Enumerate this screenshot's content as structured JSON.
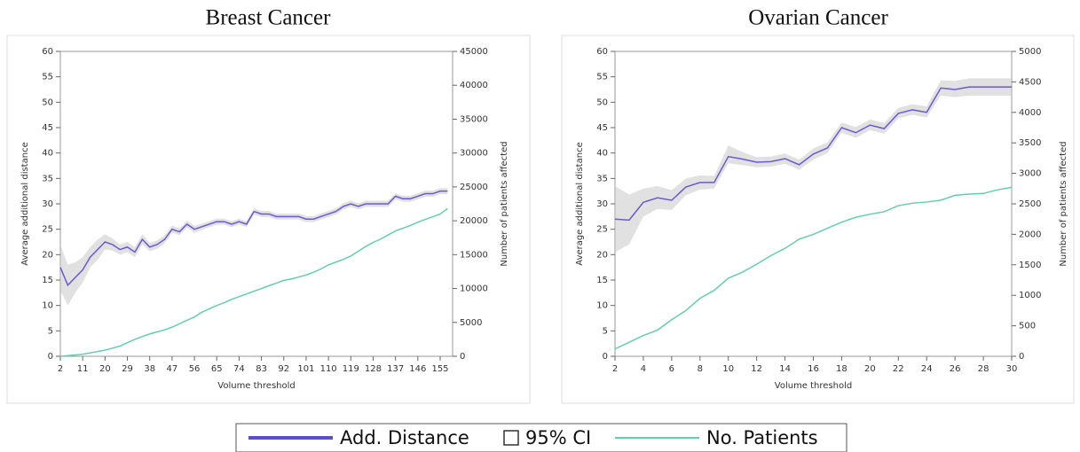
{
  "chart_data": [
    {
      "type": "line",
      "title": "Breast Cancer",
      "x_label": "Volume threshold",
      "y_label": "Average additional distance",
      "y2_label": "Number of patients affected",
      "x": [
        2,
        5,
        8,
        11,
        14,
        17,
        20,
        23,
        26,
        29,
        32,
        35,
        38,
        41,
        44,
        47,
        50,
        53,
        56,
        59,
        62,
        65,
        68,
        71,
        74,
        77,
        80,
        83,
        86,
        89,
        92,
        95,
        98,
        101,
        104,
        107,
        110,
        113,
        116,
        119,
        122,
        125,
        128,
        131,
        134,
        137,
        140,
        143,
        146,
        149,
        152,
        155,
        158
      ],
      "series": [
        {
          "color": "#6a5acd",
          "values": [
            17.5,
            14,
            15.5,
            17,
            19.5,
            21,
            22.5,
            22,
            21,
            21.5,
            20.5,
            23,
            21.5,
            22,
            23,
            25,
            24.5,
            26,
            25,
            25.5,
            26,
            26.5,
            26.5,
            26,
            26.5,
            26,
            28.5,
            28,
            28,
            27.5,
            27.5,
            27.5,
            27.5,
            27,
            27,
            27.5,
            28,
            28.5,
            29.5,
            30,
            29.5,
            30,
            30,
            30,
            30,
            31.5,
            31,
            31,
            31.5,
            32,
            32,
            32.5,
            32.5
          ],
          "lower": [
            13,
            10,
            12.5,
            14.5,
            17.5,
            19,
            21,
            20.8,
            20,
            20.5,
            19.5,
            22,
            20.7,
            21.2,
            22.2,
            24.3,
            23.8,
            25.3,
            24.3,
            24.9,
            25.4,
            25.9,
            25.9,
            25.4,
            25.9,
            25.4,
            27.9,
            27.4,
            27.4,
            26.9,
            26.9,
            26.9,
            26.9,
            26.4,
            26.4,
            26.9,
            27.4,
            27.9,
            28.9,
            29.4,
            28.9,
            29.4,
            29.4,
            29.4,
            29.4,
            30.9,
            30.4,
            30.4,
            30.9,
            31.4,
            31.4,
            31.9,
            31.9
          ],
          "upper": [
            22,
            18,
            18.5,
            19.5,
            21.5,
            23,
            24,
            23.2,
            22,
            22.5,
            21.5,
            24,
            22.3,
            22.8,
            23.8,
            25.7,
            25.2,
            26.7,
            25.7,
            26.1,
            26.6,
            27.1,
            27.1,
            26.6,
            27.1,
            26.6,
            29.1,
            28.6,
            28.6,
            28.1,
            28.1,
            28.1,
            28.1,
            27.6,
            27.6,
            28.1,
            28.6,
            29.1,
            30.1,
            30.6,
            30.1,
            30.6,
            30.6,
            30.6,
            30.6,
            32.1,
            31.6,
            31.6,
            32.1,
            32.6,
            32.6,
            33.1,
            33.1
          ]
        },
        {
          "color": "#66cdaa",
          "axis": "y2",
          "values": [
            0,
            100,
            200,
            300,
            500,
            700,
            900,
            1200,
            1500,
            2000,
            2500,
            2900,
            3300,
            3600,
            3900,
            4300,
            4800,
            5300,
            5800,
            6500,
            7000,
            7500,
            7900,
            8400,
            8800,
            9200,
            9600,
            10000,
            10400,
            10800,
            11200,
            11400,
            11700,
            12000,
            12400,
            12900,
            13500,
            13900,
            14300,
            14800,
            15500,
            16200,
            16800,
            17300,
            17900,
            18500,
            18900,
            19300,
            19800,
            20200,
            20600,
            21000,
            21800
          ]
        }
      ],
      "xlim": [
        2,
        160
      ],
      "xticks": [
        2,
        11,
        20,
        29,
        38,
        47,
        56,
        65,
        74,
        83,
        92,
        101,
        110,
        119,
        128,
        137,
        146,
        155
      ],
      "ylim": [
        0,
        60
      ],
      "yticks": [
        0,
        5,
        10,
        15,
        20,
        25,
        30,
        35,
        40,
        45,
        50,
        55,
        60
      ],
      "y2lim": [
        0,
        45000
      ],
      "y2ticks": [
        0,
        5000,
        10000,
        15000,
        20000,
        25000,
        30000,
        35000,
        40000,
        45000
      ]
    },
    {
      "type": "line",
      "title": "Ovarian Cancer",
      "x_label": "Volume threshold",
      "y_label": "Average additional distance",
      "y2_label": "Number of patients affected",
      "x": [
        2,
        3,
        4,
        5,
        6,
        7,
        8,
        9,
        10,
        11,
        12,
        13,
        14,
        15,
        16,
        17,
        18,
        19,
        20,
        21,
        22,
        23,
        24,
        25,
        26,
        27,
        28,
        29,
        30
      ],
      "series": [
        {
          "color": "#6a5acd",
          "values": [
            27,
            26.8,
            30.3,
            31.2,
            30.7,
            33.3,
            34.2,
            34.2,
            39.3,
            38.8,
            38.2,
            38.3,
            38.9,
            37.7,
            39.8,
            41,
            45,
            44,
            45.5,
            44.8,
            47.8,
            48.5,
            48,
            52.8,
            52.5,
            53,
            53,
            53,
            53
          ],
          "lower": [
            20.5,
            22,
            27.5,
            29,
            28.8,
            31.7,
            32.8,
            33,
            38,
            37.6,
            37.2,
            37.3,
            37.9,
            36.7,
            38.7,
            40,
            44,
            43,
            44.5,
            43.8,
            46.8,
            47.5,
            47,
            51.3,
            51,
            51.3,
            51.3,
            51.3,
            51.3
          ],
          "upper": [
            33.5,
            31.8,
            33,
            33.5,
            32.7,
            35,
            35.6,
            35.5,
            41.5,
            40.2,
            39.2,
            39.3,
            39.9,
            38.7,
            40.9,
            42.1,
            46,
            45.1,
            46.6,
            45.9,
            48.9,
            49.6,
            49.2,
            54.3,
            54.2,
            54.7,
            54.7,
            54.7,
            54.7
          ]
        },
        {
          "color": "#66cdaa",
          "axis": "y2",
          "values": [
            120,
            230,
            340,
            430,
            600,
            750,
            950,
            1080,
            1280,
            1380,
            1510,
            1650,
            1770,
            1920,
            2000,
            2100,
            2200,
            2280,
            2330,
            2370,
            2470,
            2510,
            2530,
            2560,
            2640,
            2660,
            2670,
            2730,
            2770
          ]
        }
      ],
      "xlim": [
        2,
        30
      ],
      "xticks": [
        2,
        4,
        6,
        8,
        10,
        12,
        14,
        16,
        18,
        20,
        22,
        24,
        26,
        28,
        30
      ],
      "ylim": [
        0,
        60
      ],
      "yticks": [
        0,
        5,
        10,
        15,
        20,
        25,
        30,
        35,
        40,
        45,
        50,
        55,
        60
      ],
      "y2lim": [
        0,
        5000
      ],
      "y2ticks": [
        0,
        500,
        1000,
        1500,
        2000,
        2500,
        3000,
        3500,
        4000,
        4500,
        5000
      ]
    }
  ],
  "legend": {
    "items": [
      {
        "label": "Add. Distance",
        "color": "#5a4fc8"
      },
      {
        "label": "95% CI",
        "color": "#ffffff"
      },
      {
        "label": "No. Patients",
        "color": "#66cdaa"
      }
    ]
  }
}
